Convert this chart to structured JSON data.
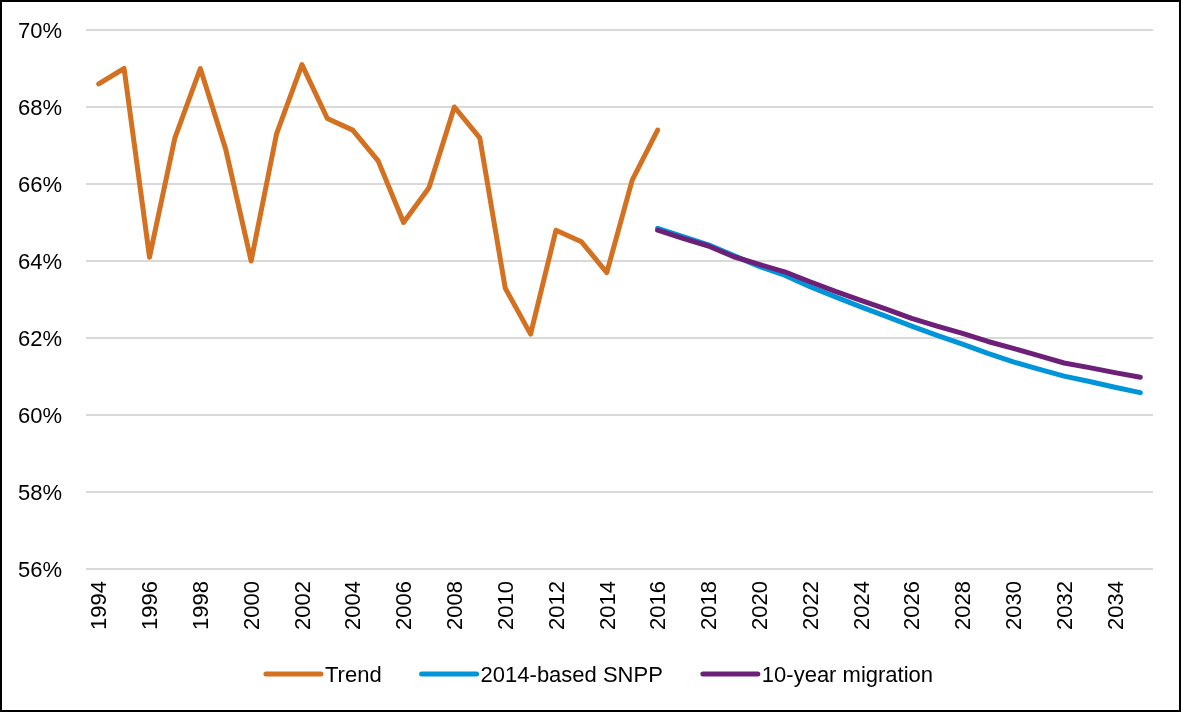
{
  "chart_data": {
    "type": "line",
    "categories": [
      "1994",
      null,
      "1996",
      null,
      "1998",
      null,
      "2000",
      null,
      "2002",
      null,
      "2004",
      null,
      "2006",
      null,
      "2008",
      null,
      "2010",
      null,
      "2012",
      null,
      "2014",
      null,
      "2016",
      null,
      "2018",
      null,
      "2020",
      null,
      "2022",
      null,
      "2024",
      null,
      "2026",
      null,
      "2028",
      null,
      "2030",
      null,
      "2032",
      null,
      "2034",
      null
    ],
    "series": [
      {
        "name": "Trend",
        "color": "#d37121",
        "values": [
          68.6,
          69.0,
          64.1,
          67.2,
          69.0,
          66.9,
          64.0,
          67.3,
          69.1,
          67.7,
          67.4,
          66.6,
          65.0,
          65.9,
          68.0,
          67.2,
          63.3,
          62.1,
          64.8,
          64.5,
          63.7,
          66.1,
          67.4,
          null,
          null,
          null,
          null,
          null,
          null,
          null,
          null,
          null,
          null,
          null,
          null,
          null,
          null,
          null,
          null,
          null,
          null,
          null
        ]
      },
      {
        "name": "2014-based SNPP",
        "color": "#0095d9",
        "values": [
          null,
          null,
          null,
          null,
          null,
          null,
          null,
          null,
          null,
          null,
          null,
          null,
          null,
          null,
          null,
          null,
          null,
          null,
          null,
          null,
          null,
          null,
          64.85,
          64.63,
          64.42,
          64.14,
          63.86,
          63.63,
          63.33,
          63.07,
          62.81,
          62.56,
          62.31,
          62.07,
          61.84,
          61.6,
          61.38,
          61.19,
          61.01,
          60.87,
          60.72,
          60.58
        ]
      },
      {
        "name": "10-year migration",
        "color": "#6d2077",
        "values": [
          null,
          null,
          null,
          null,
          null,
          null,
          null,
          null,
          null,
          null,
          null,
          null,
          null,
          null,
          null,
          null,
          null,
          null,
          null,
          null,
          null,
          null,
          64.8,
          64.59,
          64.39,
          64.11,
          63.91,
          63.72,
          63.46,
          63.21,
          62.98,
          62.75,
          62.51,
          62.31,
          62.12,
          61.91,
          61.73,
          61.54,
          61.35,
          61.23,
          61.1,
          60.98
        ]
      }
    ],
    "ylim": [
      56,
      70
    ],
    "yticks": [
      {
        "value": 56,
        "label": "56%"
      },
      {
        "value": 58,
        "label": "58%"
      },
      {
        "value": 60,
        "label": "60%"
      },
      {
        "value": 62,
        "label": "62%"
      },
      {
        "value": 64,
        "label": "64%"
      },
      {
        "value": 66,
        "label": "66%"
      },
      {
        "value": 68,
        "label": "68%"
      },
      {
        "value": 70,
        "label": "70%"
      }
    ],
    "grid": "y",
    "legend": "bottom"
  }
}
